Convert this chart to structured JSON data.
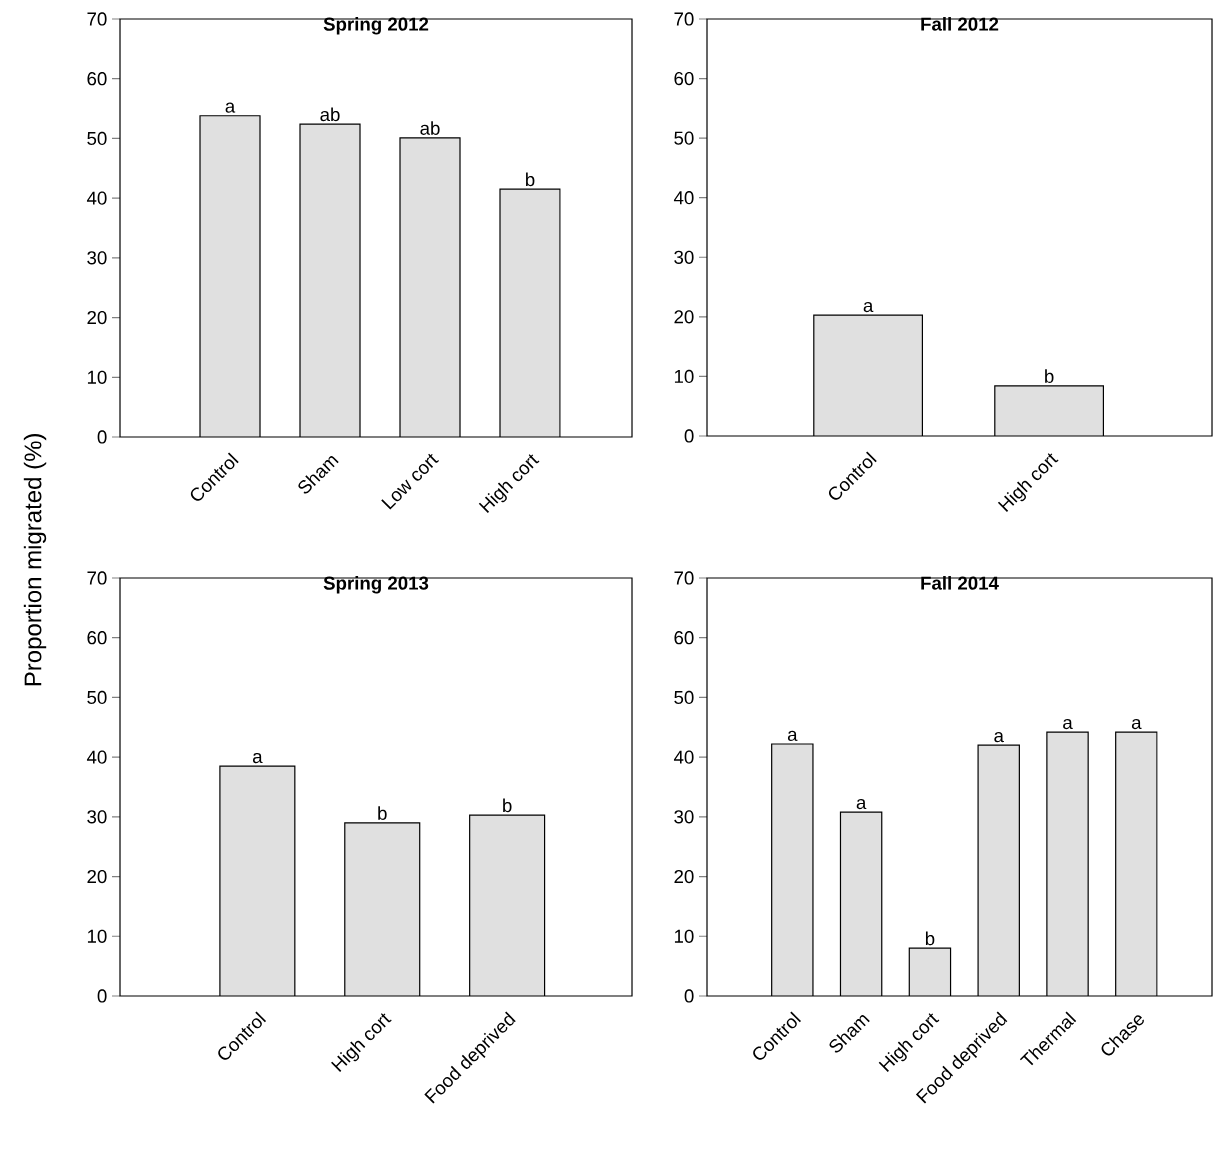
{
  "chart_data": [
    {
      "type": "bar",
      "title": "Spring 2012",
      "ylabel": "Proportion migrated (%)",
      "categories": [
        "Control",
        "Sham",
        "Low cort",
        "High cort"
      ],
      "values": [
        53.8,
        52.4,
        50.1,
        41.5
      ],
      "color": "#e0e0e0",
      "ylim": [
        0,
        70
      ],
      "yticks": [
        0,
        10,
        20,
        30,
        40,
        50,
        60,
        70
      ],
      "annotations": [
        {
          "text": "a",
          "x": "Control",
          "y": 53.8
        },
        {
          "text": "ab",
          "x": "Sham",
          "y": 52.4
        },
        {
          "text": "ab",
          "x": "Low cort",
          "y": 50.1
        },
        {
          "text": "b",
          "x": "High cort",
          "y": 41.5
        }
      ]
    },
    {
      "type": "bar",
      "title": "Fall 2012",
      "categories": [
        "Control",
        "High cort"
      ],
      "values": [
        20.3,
        8.4
      ],
      "color": "#e0e0e0",
      "ylim": [
        0,
        70
      ],
      "yticks": [
        0,
        10,
        20,
        30,
        40,
        50,
        60,
        70
      ],
      "annotations": [
        {
          "text": "a",
          "x": "Control",
          "y": 20.3
        },
        {
          "text": "b",
          "x": "High cort",
          "y": 8.4
        }
      ]
    },
    {
      "type": "bar",
      "title": "Spring 2013",
      "categories": [
        "Control",
        "High cort",
        "Food deprived"
      ],
      "values": [
        38.5,
        29.0,
        30.3
      ],
      "color": "#e0e0e0",
      "ylim": [
        0,
        70
      ],
      "yticks": [
        0,
        10,
        20,
        30,
        40,
        50,
        60,
        70
      ],
      "annotations": [
        {
          "text": "a",
          "x": "Control",
          "y": 38.5
        },
        {
          "text": "b",
          "x": "High cort",
          "y": 29.0
        },
        {
          "text": "b",
          "x": "Food deprived",
          "y": 30.3
        }
      ]
    },
    {
      "type": "bar",
      "title": "Fall 2014",
      "categories": [
        "Control",
        "Sham",
        "High cort",
        "Food deprived",
        "Thermal",
        "Chase"
      ],
      "values": [
        42.2,
        30.8,
        8.0,
        42.0,
        44.2,
        44.2
      ],
      "color": "#e0e0e0",
      "ylim": [
        0,
        70
      ],
      "yticks": [
        0,
        10,
        20,
        30,
        40,
        50,
        60,
        70
      ],
      "annotations": [
        {
          "text": "a",
          "x": "Control",
          "y": 42.2
        },
        {
          "text": "a",
          "x": "Sham",
          "y": 30.8
        },
        {
          "text": "b",
          "x": "High cort",
          "y": 8.0
        },
        {
          "text": "a",
          "x": "Food deprived",
          "y": 42.0
        },
        {
          "text": "a",
          "x": "Thermal",
          "y": 44.2
        },
        {
          "text": "a",
          "x": "Chase",
          "y": 44.2
        }
      ]
    }
  ]
}
